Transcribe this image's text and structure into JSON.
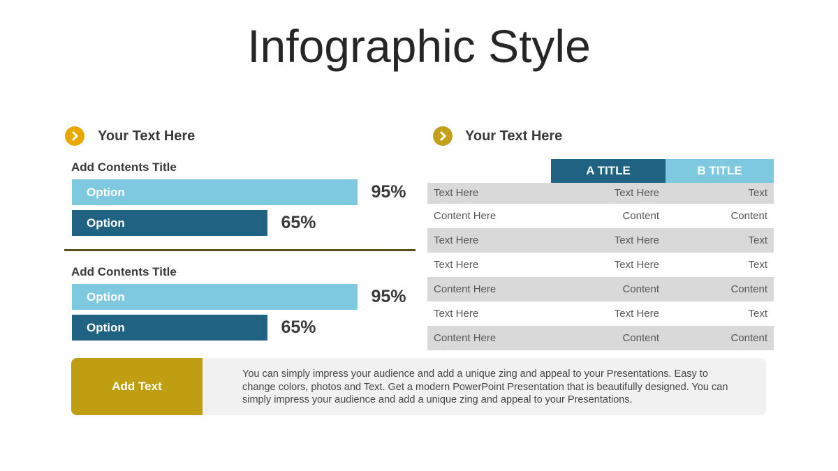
{
  "title": "Infographic Style",
  "left": {
    "heading": "Your Text  Here",
    "groups": [
      {
        "title": "Add Contents Title",
        "labels": [
          "Option",
          "Option"
        ],
        "values": [
          95,
          65
        ],
        "value_labels": [
          "95%",
          "65%"
        ],
        "colors": [
          "#7ec8e0",
          "#1f6282"
        ]
      },
      {
        "title": "Add Contents Title",
        "labels": [
          "Option",
          "Option"
        ],
        "values": [
          95,
          65
        ],
        "value_labels": [
          "95%",
          "65%"
        ],
        "colors": [
          "#7ec8e0",
          "#1f6282"
        ]
      }
    ]
  },
  "right": {
    "heading": "Your Text  Here",
    "table": {
      "columns": [
        "A TITLE",
        "B TITLE"
      ],
      "rows": [
        [
          "Text Here",
          "Text Here",
          "Text"
        ],
        [
          "Content Here",
          "Content",
          "Content"
        ],
        [
          "Text Here",
          "Text Here",
          "Text"
        ],
        [
          "Text Here",
          "Text Here",
          "Text"
        ],
        [
          "Content Here",
          "Content",
          "Content"
        ],
        [
          "Text Here",
          "Text Here",
          "Text"
        ],
        [
          "Content Here",
          "Content",
          "Content"
        ]
      ]
    }
  },
  "callout": {
    "label": "Add Text",
    "text": "You can simply impress your audience and add a unique zing and appeal to your Presentations. Easy to change colors, photos and Text.  Get a modern PowerPoint  Presentation that is beautifully designed. You can simply impress your audience and add a unique zing and appeal to your Presentations."
  }
}
